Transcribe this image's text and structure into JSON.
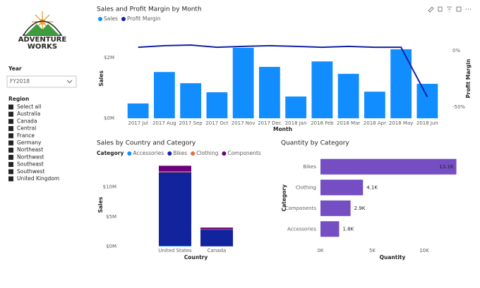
{
  "logo": {
    "line1": "ADVENTURE",
    "line2": "WORKS"
  },
  "year_slicer": {
    "title": "Year",
    "selected": "FY2018"
  },
  "region_slicer": {
    "title": "Region",
    "items": [
      "Select all",
      "Australia",
      "Canada",
      "Central",
      "France",
      "Germany",
      "Northeast",
      "Northwest",
      "Southeast",
      "Southwest",
      "United Kingdom"
    ]
  },
  "chart_data": [
    {
      "type": "combo",
      "title": "Sales and Profit Margin by Month",
      "categories": [
        "2017 Jul",
        "2017 Aug",
        "2017 Sep",
        "2017 Oct",
        "2017 Nov",
        "2017 Dec",
        "2018 Jan",
        "2018 Feb",
        "2018 Mar",
        "2018 Apr",
        "2018 May",
        "2018 Jun"
      ],
      "series": [
        {
          "name": "Sales",
          "color": "#118DFF",
          "values": [
            490000,
            1530000,
            1160000,
            860000,
            2330000,
            1700000,
            720000,
            1880000,
            1470000,
            880000,
            2280000,
            1140000
          ]
        },
        {
          "name": "Profit Margin",
          "color": "#12239E",
          "axis": "y2",
          "values": [
            3,
            4.4,
            5,
            3,
            3.8,
            4.4,
            3.8,
            3,
            3.8,
            3,
            3,
            -41
          ]
        }
      ],
      "ylim": [
        0,
        2630000
      ],
      "yticks": [
        {
          "value": 0,
          "label": "$0M"
        },
        {
          "value": 2000000,
          "label": "$2M"
        }
      ],
      "y2lim": [
        -60,
        10.6
      ],
      "y2ticks": [
        {
          "value": -50,
          "label": "-50%"
        },
        {
          "value": 0,
          "label": "0%"
        }
      ],
      "x_label": "Month",
      "y_label": "Sales",
      "y2_label": "Profit Margin",
      "grid": false
    },
    {
      "type": "stacked_bar",
      "title": "Sales by Country and Category",
      "legend_title": "Category",
      "categories": [
        "United States",
        "Canada"
      ],
      "series": [
        {
          "name": "Accessories",
          "color": "#118DFF",
          "values": [
            100000,
            30000
          ]
        },
        {
          "name": "Bikes",
          "color": "#12239E",
          "values": [
            12400000,
            2800000
          ]
        },
        {
          "name": "Clothing",
          "color": "#E66C37",
          "values": [
            150000,
            50000
          ]
        },
        {
          "name": "Components",
          "color": "#6B007B",
          "values": [
            950000,
            300000
          ]
        }
      ],
      "ylim": [
        0,
        14000000
      ],
      "yticks": [
        {
          "value": 0,
          "label": "$0M"
        },
        {
          "value": 5000000,
          "label": "$5M"
        },
        {
          "value": 10000000,
          "label": "$10M"
        }
      ],
      "x_label": "Country",
      "y_label": "Sales",
      "grid": false
    },
    {
      "type": "hbar",
      "title": "Quantity by Category",
      "categories": [
        "Bikes",
        "Clothing",
        "Components",
        "Accessories"
      ],
      "values": [
        13100,
        4100,
        2900,
        1800
      ],
      "value_labels": [
        "13.1K",
        "4.1K",
        "2.9K",
        "1.8K"
      ],
      "color": "#744EC2",
      "xlim": [
        0,
        13200
      ],
      "xticks": [
        {
          "value": 0,
          "label": "0K"
        },
        {
          "value": 5000,
          "label": "5K"
        },
        {
          "value": 10000,
          "label": "10K"
        }
      ],
      "x_label": "Quantity",
      "y_label": "Category",
      "grid": false
    }
  ]
}
